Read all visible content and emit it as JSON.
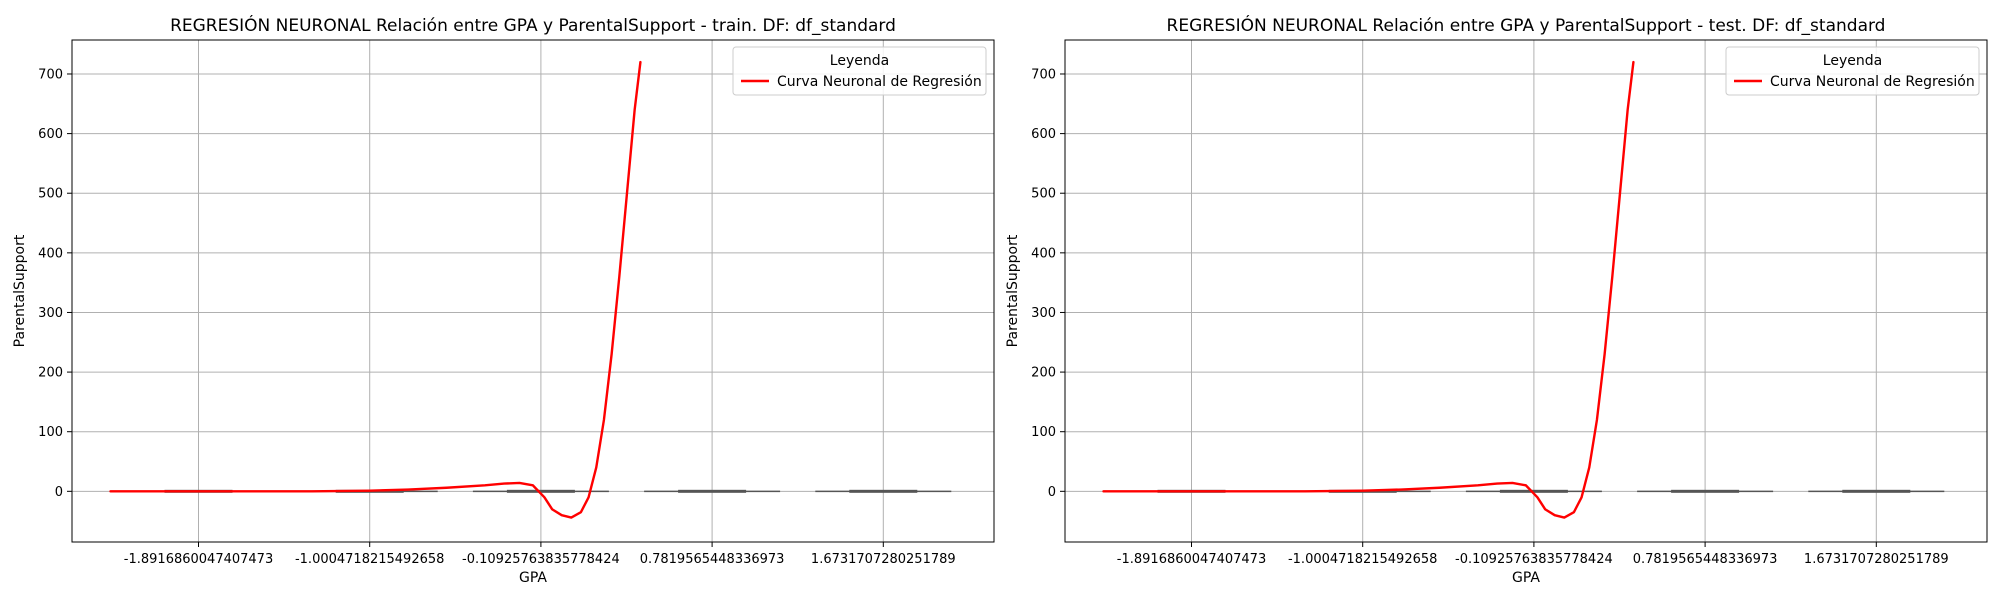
{
  "colors": {
    "curve": "#ff0000",
    "box": "#555555",
    "grid": "#b0b0b0",
    "frame": "#000000",
    "legend_border": "#cccccc"
  },
  "chart_data": [
    {
      "type": "line",
      "title": "REGRESIÓN NEURONAL Relación entre GPA y ParentalSupport - train. DF: df_standard",
      "xlabel": "GPA",
      "ylabel": "ParentalSupport",
      "ylim": [
        -85,
        757
      ],
      "categories": [
        "-1.8916860047407473",
        "-1.0004718215492658",
        "-0.10925763835778424",
        "0.7819565448336973",
        "1.6731707280251789"
      ],
      "yticks": [
        0,
        100,
        200,
        300,
        400,
        500,
        600,
        700
      ],
      "grid": true,
      "legend": {
        "title": "Leyenda",
        "position": "top-right"
      },
      "series": [
        {
          "name": "Curva Neuronal de Regresión",
          "x": [
            -2.35,
            -2.0,
            -1.6,
            -1.3,
            -1.0,
            -0.8,
            -0.6,
            -0.4,
            -0.3,
            -0.22,
            -0.15,
            -0.09,
            -0.05,
            0.0,
            0.05,
            0.1,
            0.14,
            0.18,
            0.22,
            0.26,
            0.3,
            0.34,
            0.38,
            0.41
          ],
          "y": [
            0,
            0,
            0,
            0,
            1,
            3,
            6,
            10,
            13,
            14,
            10,
            -10,
            -30,
            -40,
            -44,
            -35,
            -10,
            40,
            120,
            230,
            360,
            500,
            640,
            720
          ]
        }
      ],
      "boxes": [
        {
          "category": "-1.8916860047407473",
          "median": 0
        },
        {
          "category": "-1.0004718215492658",
          "median": 0
        },
        {
          "category": "-0.10925763835778424",
          "median": 0
        },
        {
          "category": "0.7819565448336973",
          "median": 0
        },
        {
          "category": "1.6731707280251789",
          "median": 0
        }
      ]
    },
    {
      "type": "line",
      "title": "REGRESIÓN NEURONAL Relación entre GPA y ParentalSupport - test. DF: df_standard",
      "xlabel": "GPA",
      "ylabel": "ParentalSupport",
      "ylim": [
        -85,
        757
      ],
      "categories": [
        "-1.8916860047407473",
        "-1.0004718215492658",
        "-0.10925763835778424",
        "0.7819565448336973",
        "1.6731707280251789"
      ],
      "yticks": [
        0,
        100,
        200,
        300,
        400,
        500,
        600,
        700
      ],
      "grid": true,
      "legend": {
        "title": "Leyenda",
        "position": "top-right"
      },
      "series": [
        {
          "name": "Curva Neuronal de Regresión",
          "x": [
            -2.35,
            -2.0,
            -1.6,
            -1.3,
            -1.0,
            -0.8,
            -0.6,
            -0.4,
            -0.3,
            -0.22,
            -0.15,
            -0.09,
            -0.05,
            0.0,
            0.05,
            0.1,
            0.14,
            0.18,
            0.22,
            0.26,
            0.3,
            0.34,
            0.38,
            0.41
          ],
          "y": [
            0,
            0,
            0,
            0,
            1,
            3,
            6,
            10,
            13,
            14,
            10,
            -10,
            -30,
            -40,
            -44,
            -35,
            -10,
            40,
            120,
            230,
            360,
            500,
            640,
            720
          ]
        }
      ],
      "boxes": [
        {
          "category": "-1.8916860047407473",
          "median": 0
        },
        {
          "category": "-1.0004718215492658",
          "median": 0
        },
        {
          "category": "-0.10925763835778424",
          "median": 0
        },
        {
          "category": "0.7819565448336973",
          "median": 0
        },
        {
          "category": "1.6731707280251789",
          "median": 0
        }
      ]
    }
  ]
}
